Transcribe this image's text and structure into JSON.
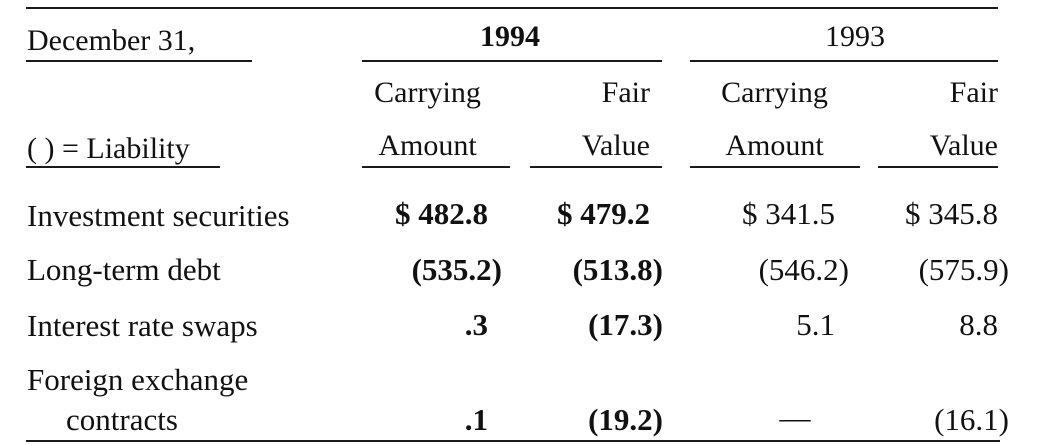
{
  "header": {
    "date_label": "December 31,",
    "year_current": "1994",
    "year_prior": "1993",
    "liability_note": "( ) = Liability",
    "col_carrying_top": "Carrying",
    "col_carrying_bottom": "Amount",
    "col_fair_top": "Fair",
    "col_fair_bottom": "Value"
  },
  "rows": [
    {
      "label": "Investment securities",
      "label_cont": "",
      "c1994": "$ 482.8",
      "f1994": "$ 479.2",
      "c1993": "$ 341.5",
      "f1993": "$ 345.8"
    },
    {
      "label": "Long-term debt",
      "label_cont": "",
      "c1994": "(535.2)",
      "f1994": "(513.8)",
      "c1993": "(546.2)",
      "f1993": "(575.9)"
    },
    {
      "label": "Interest rate swaps",
      "label_cont": "",
      "c1994": ".3",
      "f1994": "(17.3)",
      "c1993": "5.1",
      "f1993": "8.8"
    },
    {
      "label": "Foreign exchange",
      "label_cont": "contracts",
      "c1994": ".1",
      "f1994": "(19.2)",
      "c1993": "—",
      "f1993": "(16.1)"
    }
  ]
}
